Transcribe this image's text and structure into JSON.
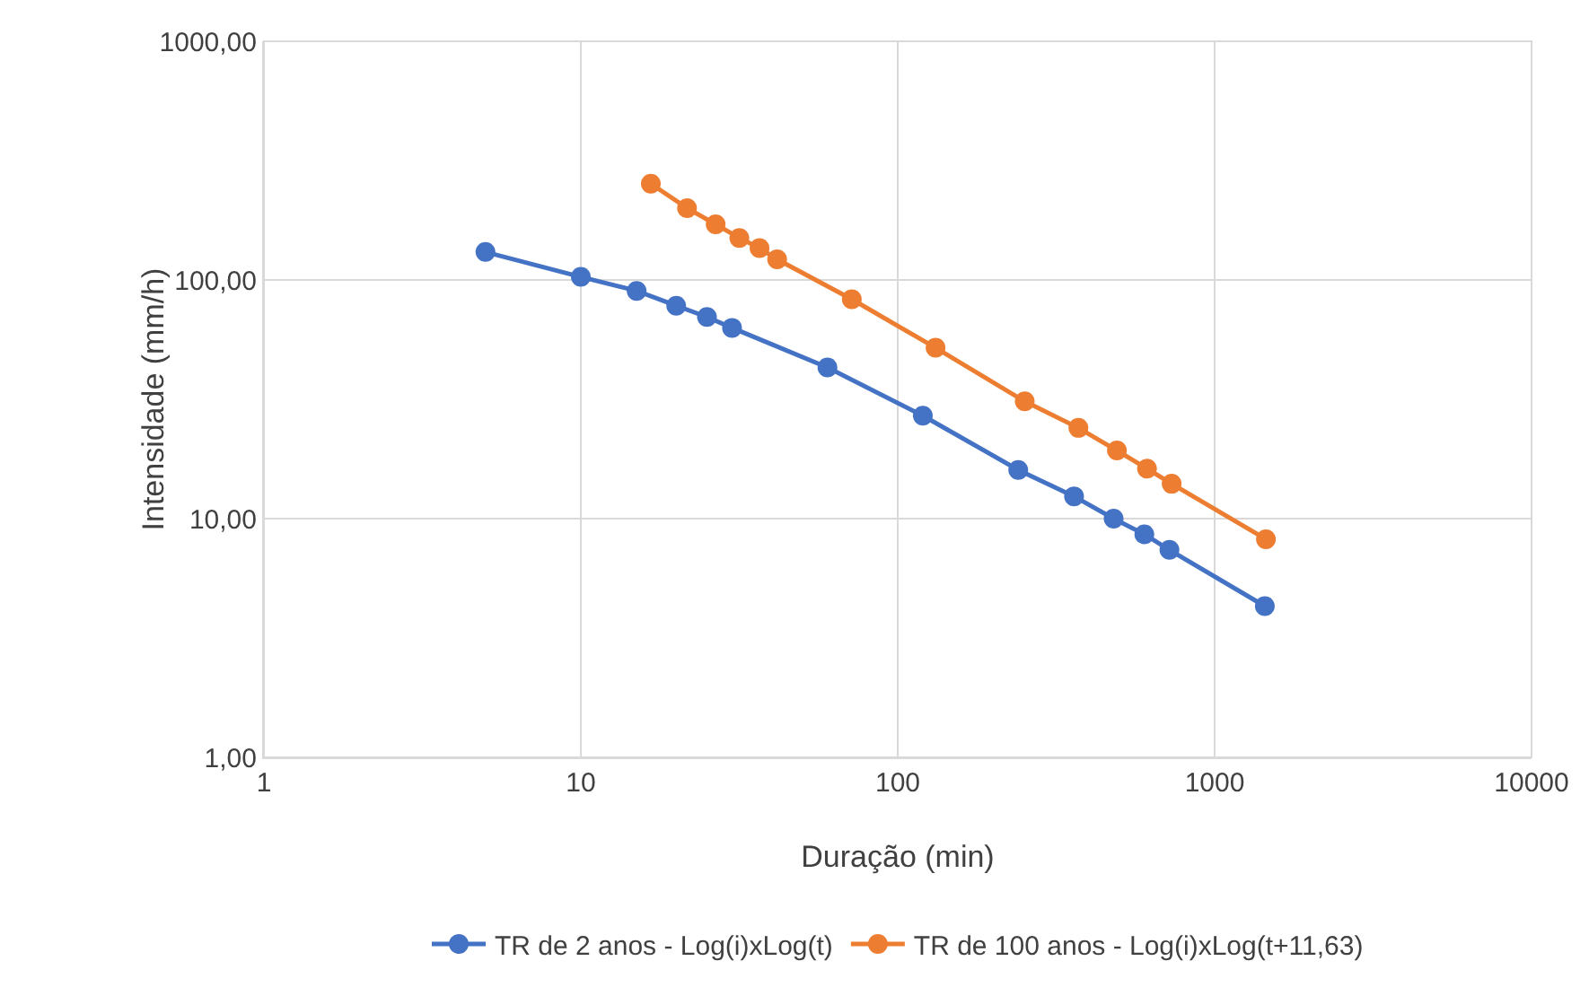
{
  "chart_data": {
    "type": "line",
    "xlabel": "Duração (min)",
    "ylabel": "Intensidade (mm/h)",
    "log": "xy",
    "grid": true,
    "legend": "bottom",
    "marker": "circle",
    "line_style": "solid",
    "xlim": [
      1,
      10000
    ],
    "xticks": [
      1,
      10,
      100,
      1000,
      10000
    ],
    "ylim": [
      1,
      1000
    ],
    "yticks": [
      {
        "value": 1,
        "label": "1,00"
      },
      {
        "value": 10,
        "label": "10,00"
      },
      {
        "value": 100,
        "label": "100,00"
      },
      {
        "value": 1000,
        "label": "1000,00"
      }
    ],
    "series": [
      {
        "name": "TR de 2 anos - Log(i)xLog(t)",
        "color": "#4472c4",
        "x": [
          5,
          10,
          15,
          20,
          25,
          30,
          60,
          120,
          240,
          360,
          480,
          600,
          720,
          1440
        ],
        "values": [
          131,
          103,
          90,
          78,
          70,
          63,
          43,
          27,
          16,
          12.4,
          10,
          8.6,
          7.4,
          4.3
        ]
      },
      {
        "name": "TR de 100 anos - Log(i)xLog(t+11,63)",
        "color": "#ed7d31",
        "x": [
          16.63,
          21.63,
          26.63,
          31.63,
          36.63,
          41.63,
          71.63,
          131.63,
          251.63,
          371.63,
          491.63,
          611.63,
          731.63,
          1451.63
        ],
        "values": [
          253,
          200,
          171,
          150,
          136,
          122,
          83,
          52,
          31,
          24,
          19.3,
          16.2,
          14,
          8.2
        ]
      }
    ]
  }
}
